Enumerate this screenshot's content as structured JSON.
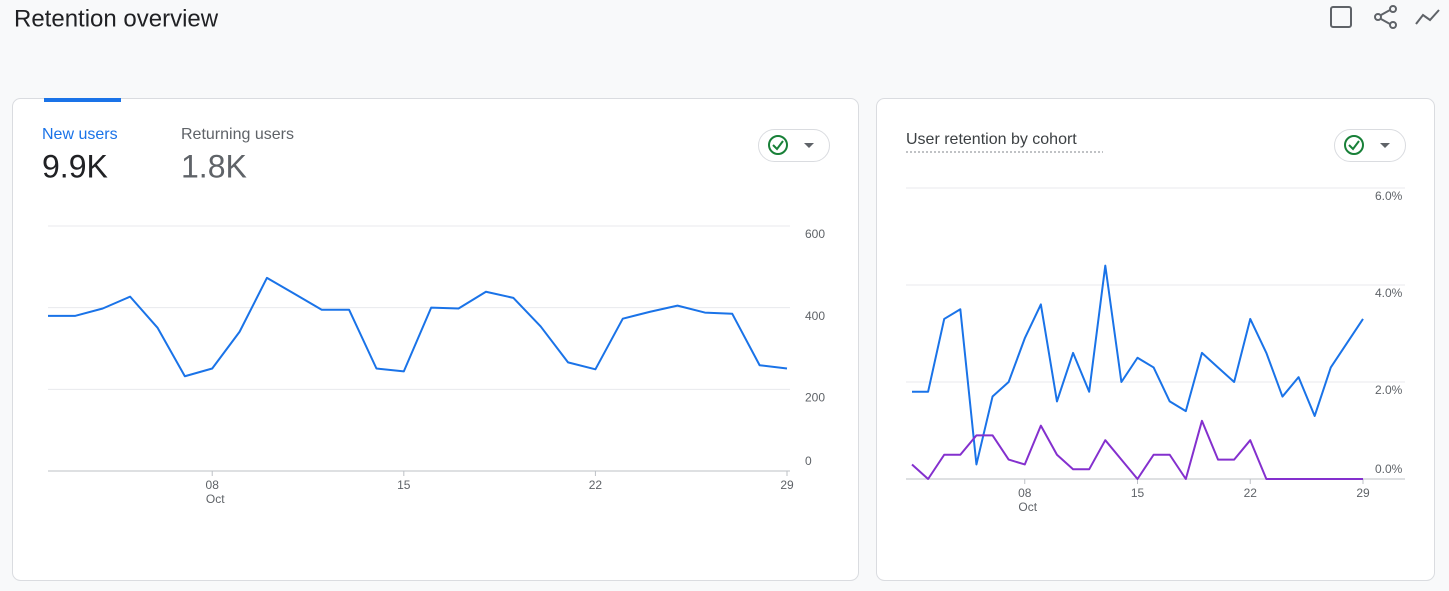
{
  "header": {
    "title": "Retention overview"
  },
  "metrics": [
    {
      "label": "New users",
      "value": "9.9K"
    },
    {
      "label": "Returning users",
      "value": "1.8K"
    }
  ],
  "chart_data": [
    {
      "type": "line",
      "color": "#1a73e8",
      "x": [
        2,
        3,
        4,
        5,
        6,
        7,
        8,
        9,
        10,
        11,
        12,
        13,
        14,
        15,
        16,
        17,
        18,
        19,
        20,
        21,
        22,
        23,
        24,
        25,
        26,
        27,
        28,
        29
      ],
      "values": [
        380,
        380,
        398,
        427,
        351,
        232,
        251,
        341,
        473,
        434,
        395,
        395,
        251,
        244,
        400,
        398,
        439,
        424,
        354,
        266,
        249,
        373,
        390,
        405,
        388,
        385,
        259,
        251
      ],
      "xlim": [
        2,
        29
      ],
      "xticks": [
        {
          "value": 8,
          "label": "08"
        },
        15,
        22,
        29
      ],
      "xtick_month": "Oct",
      "ylim": [
        0,
        600
      ],
      "yticks": [
        0,
        200,
        400,
        600
      ],
      "grid": true
    },
    {
      "type": "line",
      "title": "User retention by cohort",
      "x": [
        1,
        2,
        3,
        4,
        5,
        6,
        7,
        8,
        9,
        10,
        11,
        12,
        13,
        14,
        15,
        16,
        17,
        18,
        19,
        20,
        21,
        22,
        23,
        24,
        25,
        26,
        27,
        28,
        29
      ],
      "series": [
        {
          "color": "#1a73e8",
          "values": [
            1.8,
            1.8,
            3.3,
            3.5,
            0.3,
            1.7,
            2.0,
            2.9,
            3.6,
            1.6,
            2.6,
            1.8,
            4.4,
            2.0,
            2.5,
            2.3,
            1.6,
            1.4,
            2.6,
            2.3,
            2.0,
            3.3,
            2.6,
            1.7,
            2.1,
            1.3,
            2.3,
            2.8,
            3.3
          ]
        },
        {
          "color": "#8430ce",
          "values": [
            0.3,
            0,
            0.5,
            0.5,
            0.9,
            0.9,
            0.4,
            0.3,
            1.1,
            0.5,
            0.2,
            0.2,
            0.8,
            0.4,
            0,
            0.5,
            0.5,
            0,
            1.2,
            0.4,
            0.4,
            0.8,
            0,
            0,
            0,
            0,
            0,
            0,
            0
          ]
        }
      ],
      "xlim": [
        1,
        29
      ],
      "xticks": [
        {
          "value": 8,
          "label": "08"
        },
        15,
        22,
        29
      ],
      "xtick_month": "Oct",
      "ylim": [
        0,
        6
      ],
      "yticks": [
        {
          "value": 0,
          "label": "0.0%"
        },
        {
          "value": 2,
          "label": "2.0%"
        },
        {
          "value": 4,
          "label": "4.0%"
        },
        {
          "value": 6,
          "label": "6.0%"
        }
      ],
      "grid": true
    }
  ]
}
